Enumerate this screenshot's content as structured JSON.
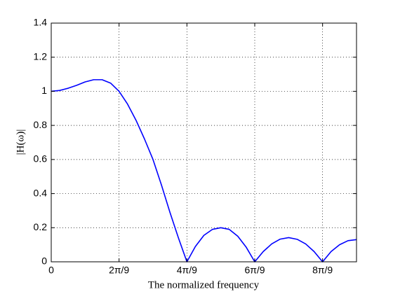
{
  "chart_data": {
    "type": "line",
    "xlabel": "The normalized frequency",
    "ylabel": "|H(ω)|",
    "x": [
      0,
      0.0873,
      0.1745,
      0.2618,
      0.3491,
      0.4363,
      0.5236,
      0.6109,
      0.6981,
      0.7854,
      0.8727,
      0.9599,
      1.0472,
      1.1345,
      1.2217,
      1.309,
      1.3963,
      1.4835,
      1.5708,
      1.6581,
      1.7453,
      1.8326,
      1.9199,
      2.0071,
      2.0944,
      2.1817,
      2.2689,
      2.3562,
      2.4435,
      2.5307,
      2.618,
      2.7053,
      2.7925,
      2.8798,
      2.9671,
      3.0543,
      3.1416
    ],
    "series": [
      {
        "color": "#0000ff",
        "values": [
          1.0,
          1.005,
          1.018,
          1.035,
          1.055,
          1.068,
          1.068,
          1.048,
          1.0,
          0.925,
          0.83,
          0.72,
          0.6,
          0.45,
          0.29,
          0.14,
          0,
          0.09,
          0.155,
          0.19,
          0.2,
          0.19,
          0.15,
          0.085,
          0,
          0.06,
          0.105,
          0.133,
          0.142,
          0.132,
          0.105,
          0.06,
          0,
          0.06,
          0.1,
          0.124,
          0.13
        ]
      }
    ],
    "xlim": [
      0,
      3.1416
    ],
    "ylim": [
      0,
      1.4
    ],
    "xticks": [
      0,
      {
        "value": 0.6981,
        "label": "2π/9"
      },
      {
        "value": 1.3963,
        "label": "4π/9"
      },
      {
        "value": 2.0944,
        "label": "6π/9"
      },
      {
        "value": 2.7925,
        "label": "8π/9"
      }
    ],
    "yticks": [
      0,
      0.2,
      0.4,
      0.6,
      0.8,
      1,
      1.2,
      1.4
    ],
    "grid": true
  }
}
